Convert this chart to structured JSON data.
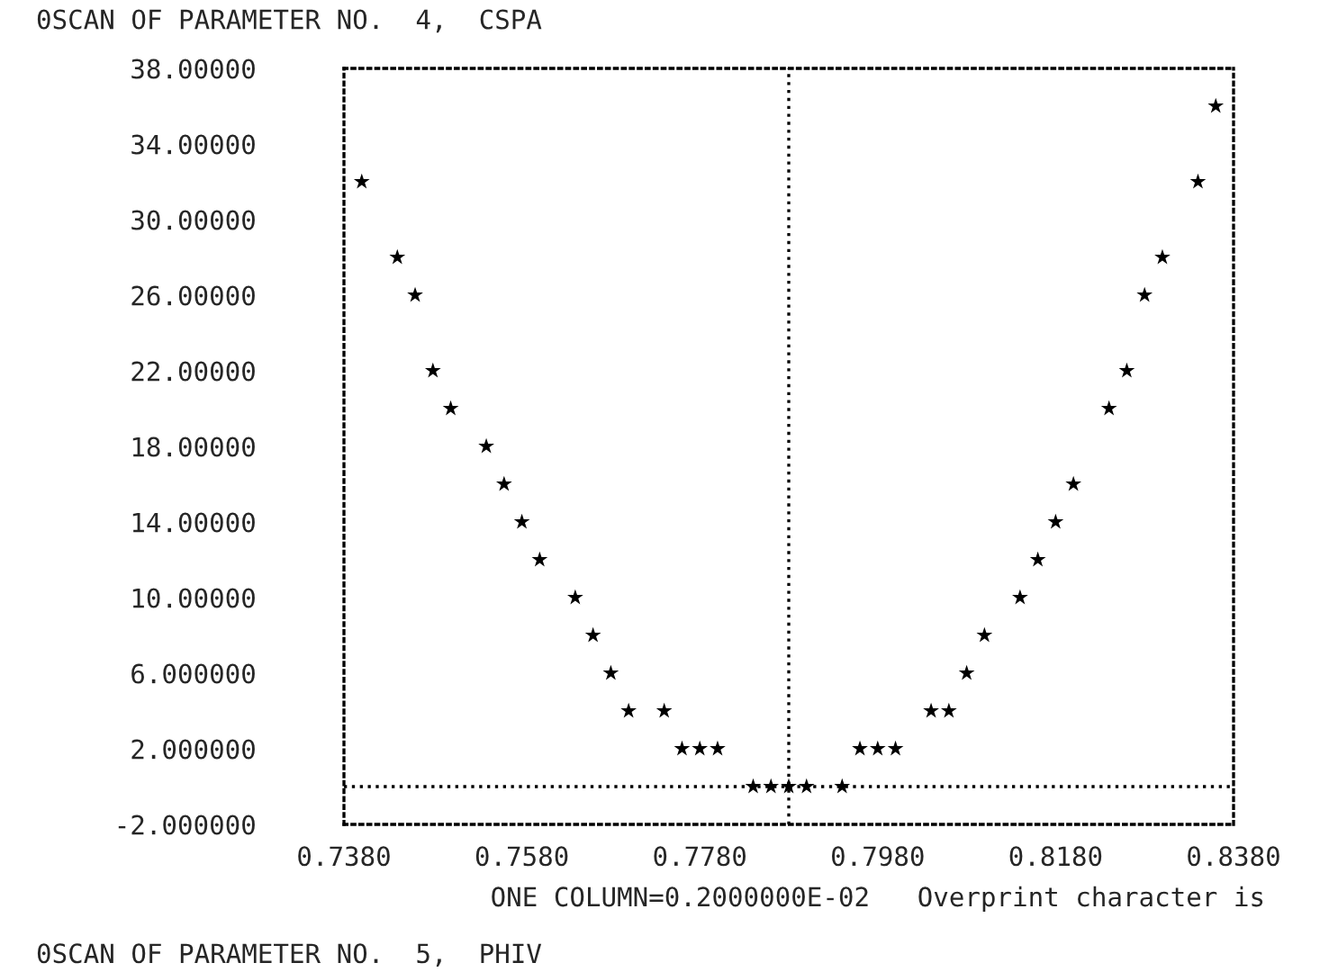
{
  "chart_data": {
    "type": "scatter",
    "title": "0SCAN OF PARAMETER NO.  4,  CSPA",
    "xlabel": "ONE COLUMN=0.2000000E-02   Overprint character is",
    "annotations": [
      "0SCAN OF PARAMETER NO.  5,  PHIV"
    ],
    "marker": "star",
    "series": [
      {
        "color": "#000000",
        "x": [
          0.836,
          0.74,
          0.834,
          0.744,
          0.83,
          0.746,
          0.828,
          0.748,
          0.826,
          0.75,
          0.824,
          0.754,
          0.756,
          0.82,
          0.758,
          0.818,
          0.76,
          0.816,
          0.764,
          0.814,
          0.766,
          0.81,
          0.768,
          0.808,
          0.77,
          0.774,
          0.804,
          0.806,
          0.776,
          0.778,
          0.78,
          0.796,
          0.798,
          0.8,
          0.784,
          0.786,
          0.788,
          0.79,
          0.794
        ],
        "values": [
          36,
          32,
          32,
          28,
          28,
          26,
          26,
          22,
          22,
          20,
          20,
          18,
          16,
          16,
          14,
          14,
          12,
          12,
          10,
          10,
          8,
          8,
          6,
          6,
          4,
          4,
          4,
          4,
          2,
          2,
          2,
          2,
          2,
          2,
          0,
          0,
          0,
          0,
          0
        ]
      }
    ],
    "ref_lines": [
      {
        "axis": "y",
        "value": 0,
        "line_style": "dotted"
      },
      {
        "axis": "x",
        "value": 0.788,
        "line_style": "dotted"
      }
    ],
    "xlim": [
      0.738,
      0.838
    ],
    "xticks": [
      {
        "value": 0.738,
        "label": "0.7380"
      },
      {
        "value": 0.758,
        "label": "0.7580"
      },
      {
        "value": 0.778,
        "label": "0.7780"
      },
      {
        "value": 0.798,
        "label": "0.7980"
      },
      {
        "value": 0.818,
        "label": "0.8180"
      },
      {
        "value": 0.838,
        "label": "0.8380"
      }
    ],
    "ylim": [
      -2,
      38
    ],
    "yticks": [
      {
        "value": 38,
        "label": "38.00000"
      },
      {
        "value": 34,
        "label": "34.00000"
      },
      {
        "value": 30,
        "label": "30.00000"
      },
      {
        "value": 26,
        "label": "26.00000"
      },
      {
        "value": 22,
        "label": "22.00000"
      },
      {
        "value": 18,
        "label": "18.00000"
      },
      {
        "value": 14,
        "label": "14.00000"
      },
      {
        "value": 10,
        "label": "10.00000"
      },
      {
        "value": 6,
        "label": "6.000000"
      },
      {
        "value": 2,
        "label": "2.000000"
      },
      {
        "value": -2,
        "label": "-2.000000"
      }
    ],
    "grid": false,
    "legend": false
  }
}
